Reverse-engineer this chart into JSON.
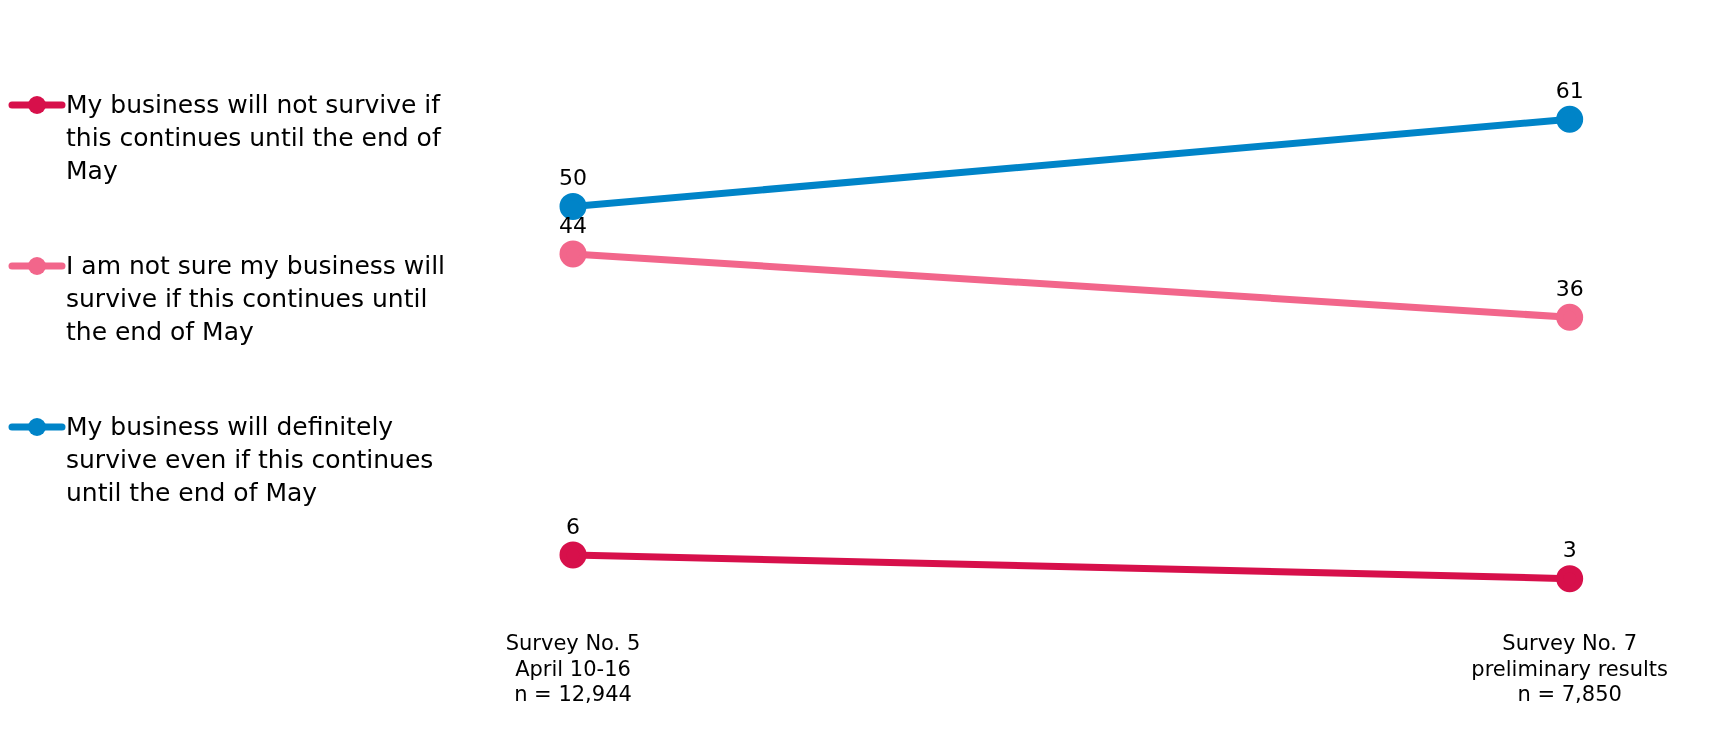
{
  "chart_data": {
    "type": "line",
    "categories": [
      "Survey No. 5\nApril 10-16\nn = 12,944",
      "Survey No. 7\npreliminary results\nn = 7,850"
    ],
    "series": [
      {
        "name": "My business will not survive if this continues until the end of May",
        "color": "#d7104b",
        "values": [
          6,
          3
        ]
      },
      {
        "name": "I am not sure my business will survive if this continues until the end of May",
        "color": "#f2668b",
        "values": [
          44,
          36
        ]
      },
      {
        "name": "My business will definitely survive even if this continues until the end of May",
        "color": "#0084c8",
        "values": [
          50,
          61
        ]
      }
    ],
    "data_labels": true,
    "legend": "left",
    "marker": "circle",
    "grid": false,
    "tick_labels": "x"
  }
}
